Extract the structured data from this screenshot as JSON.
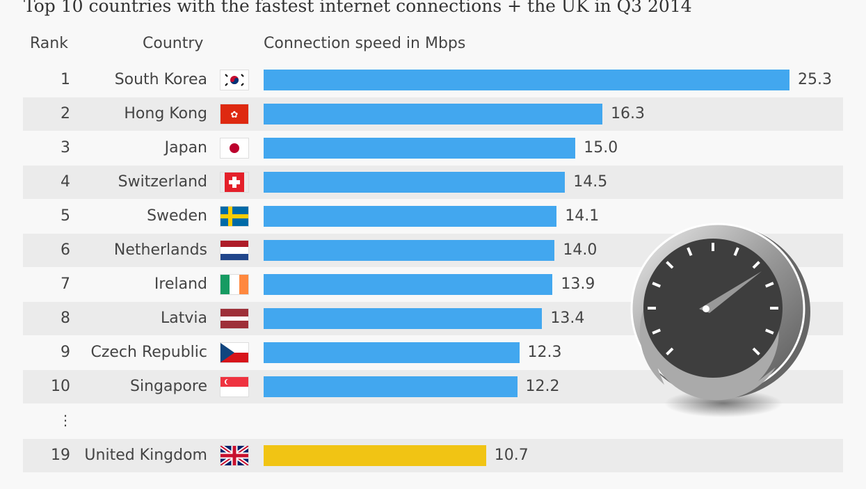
{
  "chart_data": {
    "type": "bar",
    "orientation": "horizontal",
    "title": "Top 10 countries with the fastest internet connections + the UK in Q3 2014",
    "column_headers": {
      "rank": "Rank",
      "country": "Country",
      "value": "Connection speed in Mbps"
    },
    "rows": [
      {
        "rank": "1",
        "country": "South Korea",
        "flag": "kr",
        "value": 25.3,
        "label": "25.3"
      },
      {
        "rank": "2",
        "country": "Hong Kong",
        "flag": "hk",
        "value": 16.3,
        "label": "16.3"
      },
      {
        "rank": "3",
        "country": "Japan",
        "flag": "jp",
        "value": 15.0,
        "label": "15.0"
      },
      {
        "rank": "4",
        "country": "Switzerland",
        "flag": "ch",
        "value": 14.5,
        "label": "14.5"
      },
      {
        "rank": "5",
        "country": "Sweden",
        "flag": "se",
        "value": 14.1,
        "label": "14.1"
      },
      {
        "rank": "6",
        "country": "Netherlands",
        "flag": "nl",
        "value": 14.0,
        "label": "14.0"
      },
      {
        "rank": "7",
        "country": "Ireland",
        "flag": "ie",
        "value": 13.9,
        "label": "13.9"
      },
      {
        "rank": "8",
        "country": "Latvia",
        "flag": "lv",
        "value": 13.4,
        "label": "13.4"
      },
      {
        "rank": "9",
        "country": "Czech Republic",
        "flag": "cz",
        "value": 12.3,
        "label": "12.3"
      },
      {
        "rank": "10",
        "country": "Singapore",
        "flag": "sg",
        "value": 12.2,
        "label": "12.2"
      }
    ],
    "ellipsis": "⋮",
    "highlight": {
      "rank": "19",
      "country": "United Kingdom",
      "flag": "gb",
      "value": 10.7,
      "label": "10.7"
    },
    "colors": {
      "bar": "#42a7ef",
      "highlight": "#f1c414",
      "row_shade": "#ebebeb",
      "background": "#f8f8f8"
    },
    "xlim": [
      0,
      25.3
    ],
    "decoration": "speedometer-icon"
  }
}
